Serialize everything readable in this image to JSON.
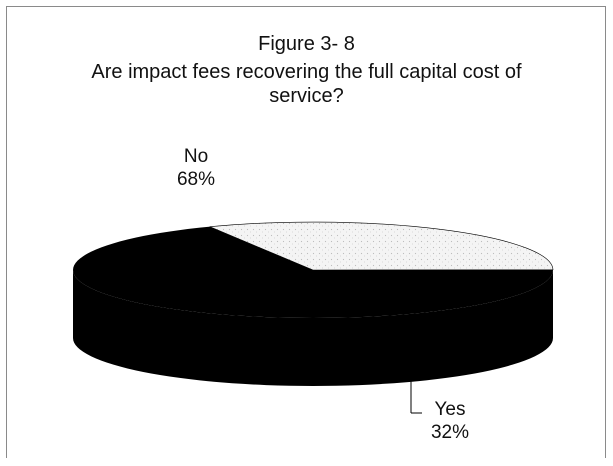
{
  "chart_data": {
    "type": "pie",
    "title": "Figure 3- 8",
    "subtitle_line1": "Are impact fees recovering the full capital cost of",
    "subtitle_line2": "service?",
    "slices": [
      {
        "label": "No",
        "value": 68,
        "display": "68%",
        "color": "#000000"
      },
      {
        "label": "Yes",
        "value": 32,
        "display": "32%",
        "color": "#eeeeee"
      }
    ],
    "style": "3d",
    "legend": "none"
  }
}
